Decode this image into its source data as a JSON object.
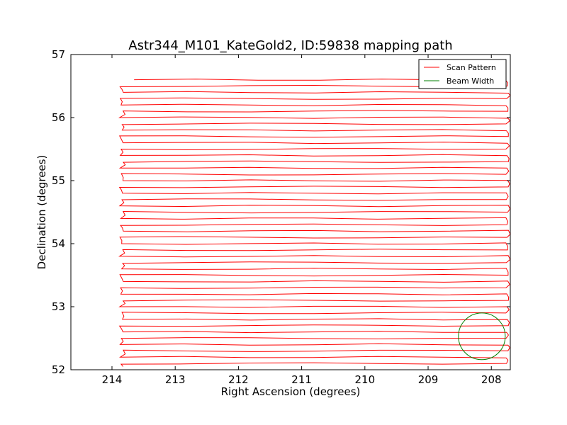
{
  "chart_data": {
    "type": "line",
    "title": "Astr344_M101_KateGold2, ID:59838 mapping path",
    "xlabel": "Right Ascension (degrees)",
    "ylabel": "Declination (degrees)",
    "xlim": [
      214.65,
      207.7
    ],
    "ylim": [
      52,
      57
    ],
    "xticks": [
      214,
      213,
      212,
      211,
      210,
      209,
      208
    ],
    "yticks": [
      52,
      53,
      54,
      55,
      56,
      57
    ],
    "grid": false,
    "legend": {
      "placement": "top-right",
      "entries": [
        "Scan Pattern",
        "Beam Width"
      ]
    },
    "series": [
      {
        "name": "Scan Pattern",
        "color": "#ff0000",
        "kind": "raster-scan",
        "ra_min": 213.85,
        "ra_max": 207.75,
        "ra_start": 213.65,
        "dec_start": 56.6,
        "dec_end": 52.1,
        "row_count": 46
      },
      {
        "name": "Beam Width",
        "color": "#008000",
        "kind": "circle",
        "center": [
          208.15,
          52.53
        ],
        "radius_deg": 0.37
      }
    ]
  }
}
